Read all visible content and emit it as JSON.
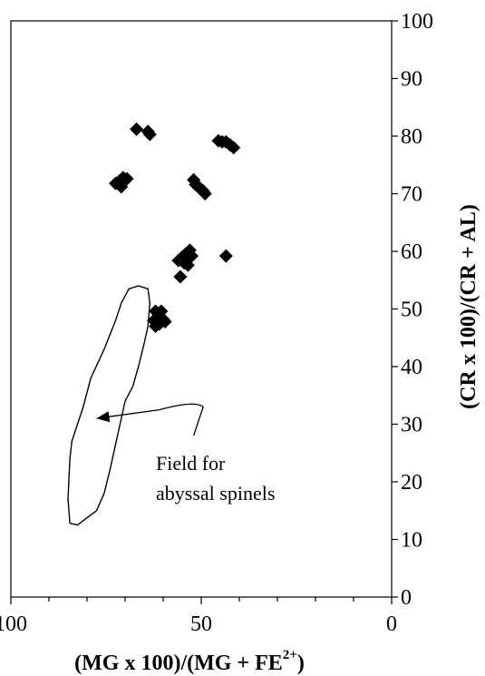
{
  "chart_data": {
    "type": "scatter",
    "title": "",
    "xlabel_main": "(MG x 100)/(MG + FE",
    "xlabel_sup": "2+",
    "xlabel_close": ")",
    "ylabel": "(CR x 100)/(CR + AL)",
    "xlim": [
      100,
      0
    ],
    "ylim": [
      0,
      100
    ],
    "x_reversed": true,
    "grid": false,
    "legend": "none",
    "marker": "diamond",
    "marker_color": "#000000",
    "x_ticks": [
      100,
      50,
      0
    ],
    "x_minor_step": 10,
    "y_ticks": [
      0,
      10,
      20,
      30,
      40,
      50,
      60,
      70,
      80,
      90,
      100
    ],
    "points": [
      {
        "x": 67,
        "y": 81.2
      },
      {
        "x": 64,
        "y": 80.8
      },
      {
        "x": 63.5,
        "y": 80.3
      },
      {
        "x": 70.5,
        "y": 72.8
      },
      {
        "x": 71.5,
        "y": 72.2
      },
      {
        "x": 72.5,
        "y": 71.8
      },
      {
        "x": 71,
        "y": 71.2
      },
      {
        "x": 69.5,
        "y": 72.6
      },
      {
        "x": 45.5,
        "y": 79.2
      },
      {
        "x": 44.5,
        "y": 79.0
      },
      {
        "x": 43.5,
        "y": 79.0
      },
      {
        "x": 42.5,
        "y": 78.5
      },
      {
        "x": 41.5,
        "y": 78.0
      },
      {
        "x": 52,
        "y": 72.4
      },
      {
        "x": 51.5,
        "y": 71.6
      },
      {
        "x": 51,
        "y": 71.4
      },
      {
        "x": 50.5,
        "y": 71.0
      },
      {
        "x": 49.5,
        "y": 70.5
      },
      {
        "x": 49,
        "y": 70.0
      },
      {
        "x": 53,
        "y": 60.2
      },
      {
        "x": 54,
        "y": 59.6
      },
      {
        "x": 55,
        "y": 59.0
      },
      {
        "x": 56,
        "y": 58.4
      },
      {
        "x": 53.5,
        "y": 58.8
      },
      {
        "x": 54.5,
        "y": 58.0
      },
      {
        "x": 53.5,
        "y": 57.6
      },
      {
        "x": 52.5,
        "y": 59.2
      },
      {
        "x": 55.5,
        "y": 55.6
      },
      {
        "x": 43.5,
        "y": 59.2
      },
      {
        "x": 62,
        "y": 49.6
      },
      {
        "x": 60.5,
        "y": 49.6
      },
      {
        "x": 61.5,
        "y": 48.6
      },
      {
        "x": 60,
        "y": 48.2
      },
      {
        "x": 62.5,
        "y": 48.0
      },
      {
        "x": 59.5,
        "y": 47.8
      },
      {
        "x": 61,
        "y": 47.4
      },
      {
        "x": 62,
        "y": 47.0
      }
    ],
    "field_polygon": [
      [
        79.5,
        14.0
      ],
      [
        82.5,
        12.5
      ],
      [
        84.5,
        12.8
      ],
      [
        85.0,
        17.0
      ],
      [
        84.5,
        24.0
      ],
      [
        84.0,
        27.0
      ],
      [
        82.5,
        30.0
      ],
      [
        81.0,
        33.0
      ],
      [
        79.0,
        38.0
      ],
      [
        75.5,
        43.0
      ],
      [
        72.5,
        48.0
      ],
      [
        71.0,
        51.0
      ],
      [
        69.0,
        53.5
      ],
      [
        66.5,
        54.0
      ],
      [
        64.0,
        53.5
      ],
      [
        63.5,
        51.0
      ],
      [
        64.0,
        47.0
      ],
      [
        65.0,
        44.0
      ],
      [
        66.5,
        40.0
      ],
      [
        68.0,
        36.5
      ],
      [
        70.0,
        34.0
      ],
      [
        71.0,
        31.0
      ],
      [
        72.0,
        28.0
      ],
      [
        73.0,
        25.0
      ],
      [
        74.0,
        22.0
      ],
      [
        75.5,
        18.0
      ],
      [
        77.5,
        15.0
      ],
      [
        79.5,
        14.0
      ]
    ],
    "annotation": {
      "lines": [
        "Field for",
        "abyssal spinels"
      ],
      "arrow_to": [
        77.5,
        31.0
      ],
      "arrow_via": [
        [
          61.0,
          32.5
        ],
        [
          51.5,
          34.2
        ],
        [
          49.5,
          33.0
        ],
        [
          52.0,
          28.0
        ]
      ]
    }
  }
}
